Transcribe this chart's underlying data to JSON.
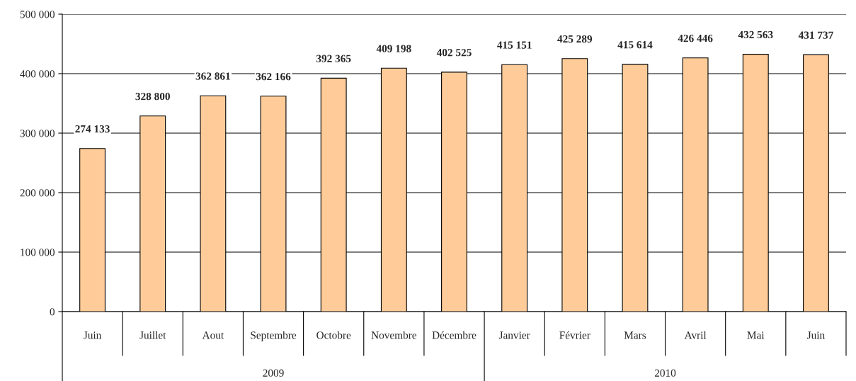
{
  "chart_data": {
    "type": "bar",
    "categories": [
      "Juin",
      "Juillet",
      "Aout",
      "Septembre",
      "Octobre",
      "Novembre",
      "Décembre",
      "Janvier",
      "Février",
      "Mars",
      "Avril",
      "Mai",
      "Juin"
    ],
    "values": [
      274133,
      328800,
      362861,
      362166,
      392365,
      409198,
      402525,
      415151,
      425289,
      415614,
      426446,
      432563,
      431737
    ],
    "value_labels": [
      "274 133",
      "328 800",
      "362 861",
      "362 166",
      "392 365",
      "409 198",
      "402 525",
      "415 151",
      "425 289",
      "415 614",
      "426 446",
      "432 563",
      "431 737"
    ],
    "color": "#ffcc99",
    "ylim": [
      0,
      500000
    ],
    "yticks": [
      0,
      {
        "value": 100000,
        "label": "100 000"
      },
      {
        "value": 200000,
        "label": "200 000"
      },
      {
        "value": 300000,
        "label": "300 000"
      },
      {
        "value": 400000,
        "label": "400 000"
      },
      {
        "value": 500000,
        "label": "500 000"
      }
    ],
    "grid": "y",
    "annotations": [
      "2009",
      "2010"
    ]
  }
}
